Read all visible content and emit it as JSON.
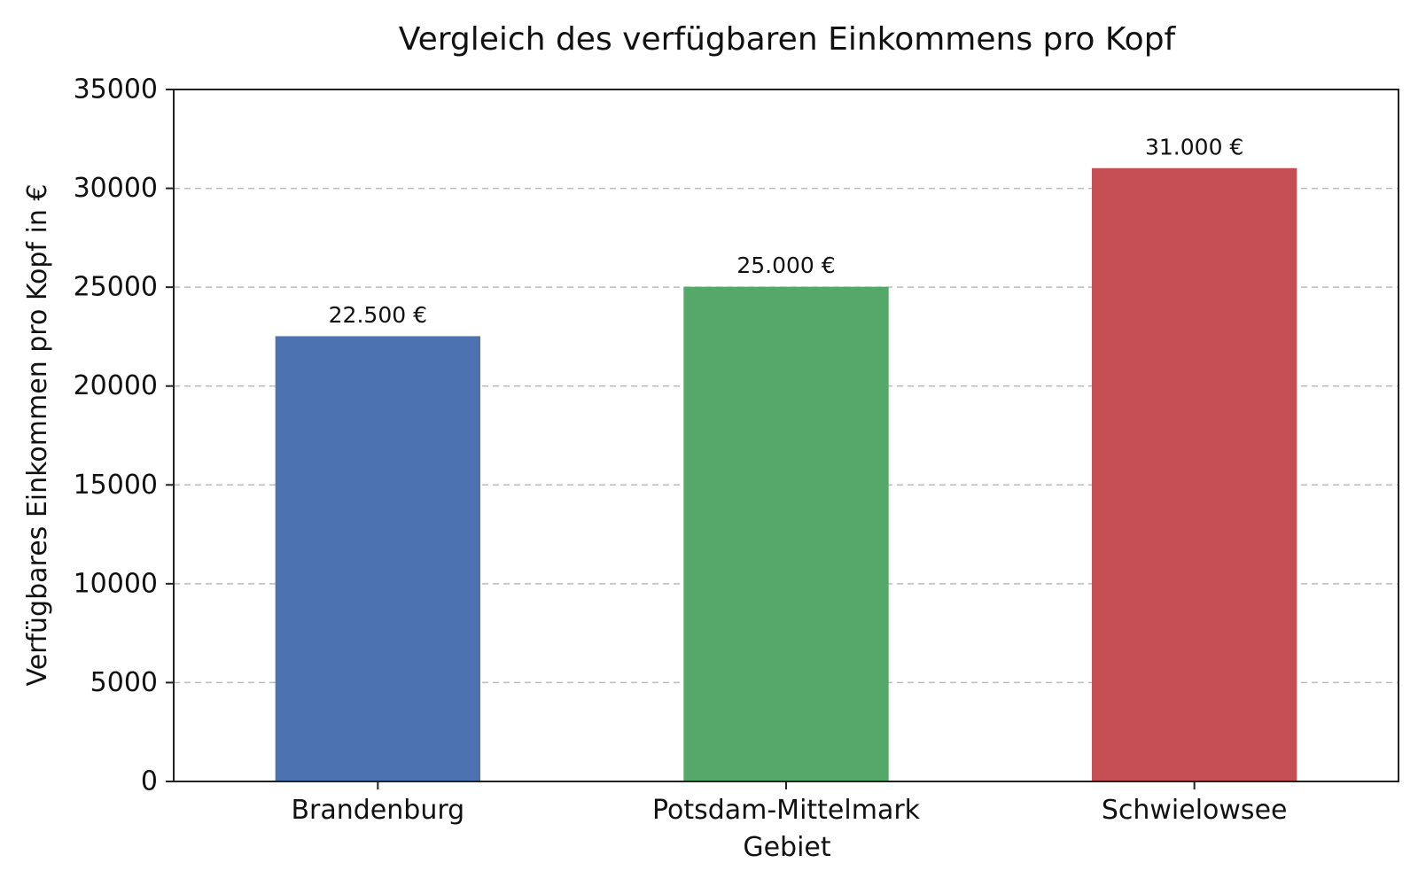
{
  "chart_data": {
    "type": "bar",
    "title": "Vergleich des verfügbaren Einkommens pro Kopf",
    "xlabel": "Gebiet",
    "ylabel": "Verfügbares Einkommen pro Kopf in €",
    "categories": [
      "Brandenburg",
      "Potsdam-Mittelmark",
      "Schwielowsee"
    ],
    "values": [
      22500,
      25000,
      31000
    ],
    "value_labels": [
      "22.500 €",
      "25.000 €",
      "31.000 €"
    ],
    "colors": [
      "#4c72b0",
      "#55a868",
      "#c44e52"
    ],
    "ylim": [
      0,
      35000
    ],
    "yticks": [
      0,
      5000,
      10000,
      15000,
      20000,
      25000,
      30000,
      35000
    ],
    "ytick_labels": [
      "0",
      "5000",
      "10000",
      "15000",
      "20000",
      "25000",
      "30000",
      "35000"
    ],
    "grid": "horizontal dashed",
    "legend": "none"
  }
}
